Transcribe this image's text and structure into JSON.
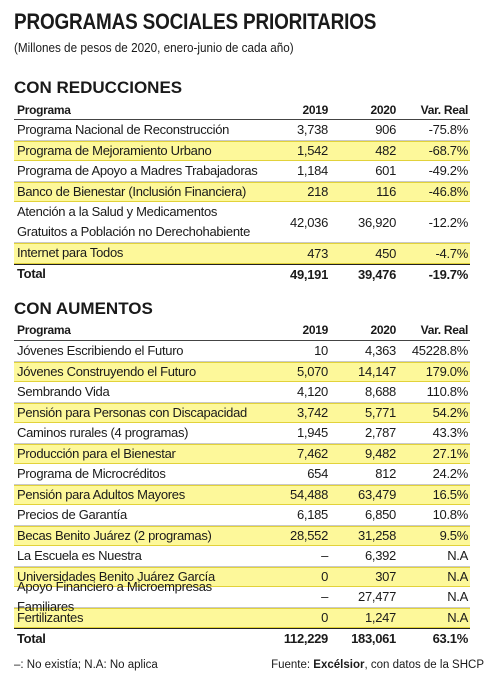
{
  "header": {
    "title": "PROGRAMAS SOCIALES PRIORITARIOS",
    "subtitle": "(Millones de pesos de 2020, enero-junio de cada año)"
  },
  "sections": [
    {
      "title": "CON REDUCCIONES",
      "columns": [
        "Programa",
        "2019",
        "2020",
        "Var. Real"
      ],
      "rows": [
        [
          "Programa Nacional de Reconstrucción",
          "3,738",
          "906",
          "-75.8%"
        ],
        [
          "Programa de Mejoramiento Urbano",
          "1,542",
          "482",
          "-68.7%"
        ],
        [
          "Programa de Apoyo a Madres Trabajadoras",
          "1,184",
          "601",
          "-49.2%"
        ],
        [
          "Banco de Bienestar (Inclusión Financiera)",
          "218",
          "116",
          "-46.8%"
        ],
        [
          "Atención a la Salud y Medicamentos\nGratuitos a Población no Derechohabiente",
          "42,036",
          "36,920",
          "-12.2%"
        ],
        [
          "Internet para Todos",
          "473",
          "450",
          "-4.7%"
        ]
      ],
      "total": [
        "Total",
        "49,191",
        "39,476",
        "-19.7%"
      ]
    },
    {
      "title": "CON AUMENTOS",
      "columns": [
        "Programa",
        "2019",
        "2020",
        "Var. Real"
      ],
      "rows": [
        [
          "Jóvenes Escribiendo el Futuro",
          "10",
          "4,363",
          "45228.8%"
        ],
        [
          "Jóvenes Construyendo el Futuro",
          "5,070",
          "14,147",
          "179.0%"
        ],
        [
          "Sembrando Vida",
          "4,120",
          "8,688",
          "110.8%"
        ],
        [
          "Pensión para Personas con Discapacidad",
          "3,742",
          "5,771",
          "54.2%"
        ],
        [
          "Caminos rurales (4 programas)",
          "1,945",
          "2,787",
          "43.3%"
        ],
        [
          "Producción para el Bienestar",
          "7,462",
          "9,482",
          "27.1%"
        ],
        [
          "Programa de Microcréditos",
          "654",
          "812",
          "24.2%"
        ],
        [
          "Pensión para Adultos Mayores",
          "54,488",
          "63,479",
          "16.5%"
        ],
        [
          "Precios de Garantía",
          "6,185",
          "6,850",
          "10.8%"
        ],
        [
          "Becas Benito Juárez (2 programas)",
          "28,552",
          "31,258",
          "9.5%"
        ],
        [
          "La Escuela es Nuestra",
          "–",
          "6,392",
          "N.A"
        ],
        [
          "Universidades Benito Juárez García",
          "0",
          "307",
          "N.A"
        ],
        [
          "Apoyo Financiero a Microempresas Familiares",
          "–",
          "27,477",
          "N.A"
        ],
        [
          "Fertilizantes",
          "0",
          "1,247",
          "N.A"
        ]
      ],
      "total": [
        "Total",
        "112,229",
        "183,061",
        "63.1%"
      ]
    }
  ],
  "footer": {
    "note": "–: No existía; N.A: No aplica",
    "source": [
      "Fuente: ",
      "Excélsior",
      ", con datos de la SHCP"
    ]
  }
}
